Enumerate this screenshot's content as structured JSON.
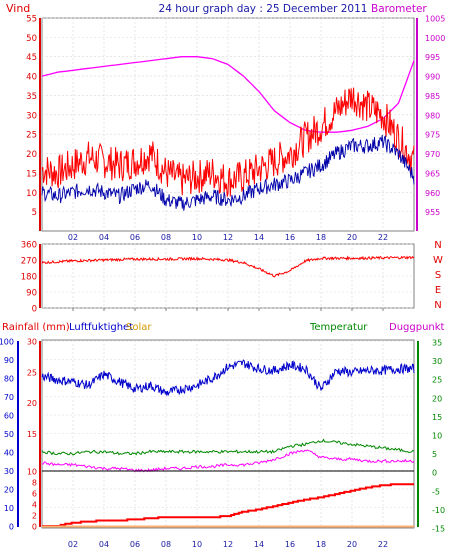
{
  "title": "24 hour graph day : 25 December 2011",
  "chart_data": [
    {
      "type": "line",
      "panel": "wind-barometer",
      "title": "24 hour graph day : 25 December 2011",
      "left_axis_label": "Vind",
      "right_axis_label": "Barometer",
      "x_ticks": [
        "02",
        "04",
        "06",
        "08",
        "10",
        "12",
        "14",
        "16",
        "18",
        "20",
        "22"
      ],
      "left_ylim": [
        0,
        55
      ],
      "left_ticks": [
        5,
        10,
        15,
        20,
        25,
        30,
        35,
        40,
        45,
        50,
        55
      ],
      "right_ylim": [
        950,
        1005
      ],
      "right_ticks": [
        955,
        960,
        965,
        970,
        975,
        980,
        985,
        990,
        995,
        1000,
        1005
      ],
      "series": [
        {
          "role": "barometer",
          "color": "#ff00ff",
          "axis": "right",
          "x": [
            0,
            1,
            2,
            3,
            4,
            5,
            6,
            7,
            8,
            9,
            10,
            11,
            12,
            13,
            14,
            15,
            16,
            17,
            18,
            19,
            20,
            21,
            22,
            23,
            24
          ],
          "values": [
            990,
            991,
            991.5,
            992,
            992.5,
            993,
            993.5,
            994,
            994.5,
            995,
            995,
            994.5,
            993,
            990,
            986,
            981,
            978,
            976,
            975.5,
            975.5,
            976,
            977,
            979,
            983,
            994
          ]
        },
        {
          "role": "wind-gust",
          "color": "#ff0000",
          "axis": "left",
          "x": [
            0,
            1,
            2,
            3,
            4,
            5,
            6,
            7,
            8,
            9,
            10,
            11,
            12,
            13,
            14,
            15,
            16,
            17,
            18,
            19,
            20,
            21,
            22,
            23,
            24
          ],
          "values": [
            16,
            15,
            17,
            19,
            18,
            17,
            18,
            20,
            15,
            13,
            14,
            15,
            13,
            14,
            16,
            18,
            20,
            24,
            27,
            31,
            35,
            32,
            30,
            24,
            18
          ]
        },
        {
          "role": "wind-average",
          "color": "#0000aa",
          "axis": "left",
          "x": [
            0,
            1,
            2,
            3,
            4,
            5,
            6,
            7,
            8,
            9,
            10,
            11,
            12,
            13,
            14,
            15,
            16,
            17,
            18,
            19,
            20,
            21,
            22,
            23,
            24
          ],
          "values": [
            10,
            9,
            10,
            11,
            10,
            9,
            11,
            12,
            8,
            7,
            8,
            9,
            8,
            9,
            11,
            12,
            13,
            15,
            17,
            20,
            22,
            22,
            23,
            20,
            14
          ]
        }
      ]
    },
    {
      "type": "line",
      "panel": "wind-direction",
      "right_labels": [
        "N",
        "W",
        "S",
        "E",
        "N"
      ],
      "left_ylim": [
        0,
        360
      ],
      "left_ticks": [
        0,
        90,
        180,
        270,
        360
      ],
      "x_ticks": [
        "02",
        "04",
        "06",
        "08",
        "10",
        "12",
        "14",
        "16",
        "18",
        "20",
        "22"
      ],
      "series": [
        {
          "role": "wind-direction",
          "color": "#ff0000",
          "x": [
            0,
            2,
            4,
            6,
            8,
            10,
            12,
            13,
            14,
            15,
            16,
            17,
            18,
            19,
            20,
            22,
            24
          ],
          "values": [
            255,
            265,
            270,
            275,
            275,
            278,
            270,
            255,
            220,
            180,
            210,
            265,
            280,
            280,
            280,
            282,
            285
          ]
        }
      ]
    },
    {
      "type": "line",
      "panel": "humidity-temperature-rain",
      "header_labels": {
        "rainfall": "Rainfall (mm)",
        "humidity": "Luftfuktighet",
        "solar": "Solar",
        "temperature": "Temperatur",
        "dewpoint": "Duggpunkt"
      },
      "rain_axis_ticks": [
        0,
        10,
        20,
        30,
        40,
        50,
        60,
        70,
        80,
        90,
        100
      ],
      "humidity_axis_ticks": [
        0,
        2,
        4,
        6,
        8,
        10,
        15,
        20,
        25,
        30
      ],
      "temp_axis_ticks": [
        -15,
        -10,
        -5,
        0,
        5,
        10,
        15,
        20,
        25,
        30,
        35
      ],
      "temp_ylim": [
        -15,
        35
      ],
      "x_ticks": [
        "02",
        "04",
        "06",
        "08",
        "10",
        "12",
        "14",
        "16",
        "18",
        "20",
        "22"
      ],
      "series": [
        {
          "role": "humidity",
          "color": "#0000cc",
          "unit": "%",
          "x": [
            0,
            1,
            2,
            3,
            4,
            5,
            6,
            7,
            8,
            9,
            10,
            11,
            12,
            13,
            14,
            15,
            16,
            17,
            18,
            19,
            20,
            21,
            22,
            23,
            24
          ],
          "values": [
            81,
            79,
            78,
            76,
            82,
            78,
            74,
            76,
            72,
            74,
            76,
            80,
            86,
            88,
            85,
            84,
            87,
            85,
            74,
            84,
            83,
            84,
            84,
            85,
            85
          ]
        },
        {
          "role": "temperature",
          "color": "#008800",
          "unit": "°C",
          "x": [
            0,
            1,
            2,
            3,
            4,
            5,
            6,
            7,
            8,
            9,
            10,
            11,
            12,
            13,
            14,
            15,
            16,
            17,
            18,
            19,
            20,
            21,
            22,
            23,
            24
          ],
          "values": [
            5.5,
            5.0,
            5.0,
            5.5,
            5.5,
            5.0,
            5.0,
            5.5,
            5.5,
            5.5,
            5.5,
            5.5,
            5.5,
            5.5,
            5.5,
            5.5,
            7.0,
            7.5,
            8.5,
            8.0,
            7.5,
            7.0,
            6.5,
            6.0,
            5.5
          ]
        },
        {
          "role": "dewpoint",
          "color": "#ff00ff",
          "unit": "°C",
          "x": [
            0,
            1,
            2,
            3,
            4,
            5,
            6,
            7,
            8,
            9,
            10,
            11,
            12,
            13,
            14,
            15,
            16,
            17,
            18,
            19,
            20,
            21,
            22,
            23,
            24
          ],
          "values": [
            2.5,
            2.0,
            2.0,
            1.5,
            1.0,
            1.0,
            0.5,
            0.5,
            1.0,
            1.0,
            1.5,
            1.5,
            2.0,
            2.0,
            2.5,
            3.5,
            5.0,
            6.0,
            4.0,
            3.5,
            3.5,
            3.0,
            3.0,
            3.0,
            3.0
          ]
        },
        {
          "role": "rain-total",
          "color": "#ff0000",
          "unit": "mm",
          "x": [
            0,
            1,
            2,
            3,
            4,
            5,
            6,
            7,
            8,
            9,
            10,
            11,
            12,
            13,
            14,
            15,
            16,
            17,
            18,
            19,
            20,
            21,
            22,
            23,
            24
          ],
          "values": [
            0,
            0,
            0.6,
            0.8,
            1.0,
            1.0,
            1.2,
            1.4,
            1.6,
            1.6,
            1.6,
            1.6,
            1.8,
            2.6,
            3.0,
            3.6,
            4.2,
            4.8,
            5.2,
            5.8,
            6.4,
            7.0,
            7.4,
            7.6,
            7.6
          ]
        }
      ]
    }
  ]
}
